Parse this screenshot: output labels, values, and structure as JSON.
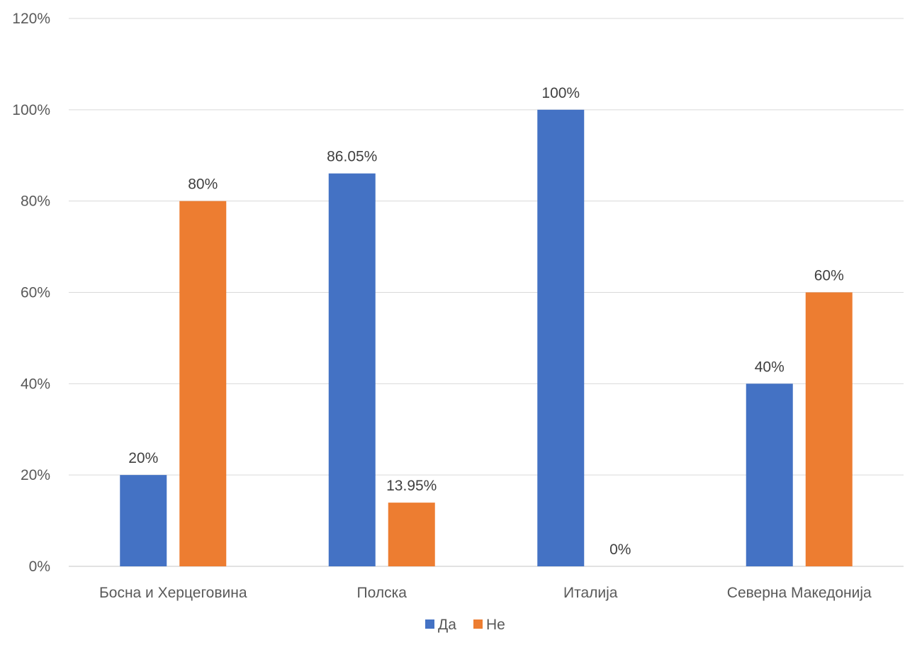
{
  "chart_data": {
    "type": "bar",
    "categories": [
      "Босна и Херцеговина",
      "Полска",
      "Италија",
      "Северна Македонија"
    ],
    "series": [
      {
        "name": "Да",
        "color": "#4472c4",
        "values": [
          20,
          86.05,
          100,
          40
        ],
        "labels": [
          "20%",
          "86.05%",
          "100%",
          "40%"
        ]
      },
      {
        "name": "Не",
        "color": "#ed7d31",
        "values": [
          80,
          13.95,
          0,
          60
        ],
        "labels": [
          "80%",
          "13.95%",
          "0%",
          "60%"
        ]
      }
    ],
    "y_ticks": [
      0,
      20,
      40,
      60,
      80,
      100,
      120
    ],
    "y_tick_labels": [
      "0%",
      "20%",
      "40%",
      "60%",
      "80%",
      "100%",
      "120%"
    ],
    "ylim": [
      0,
      120
    ],
    "grid": true,
    "legend_position": "bottom"
  }
}
